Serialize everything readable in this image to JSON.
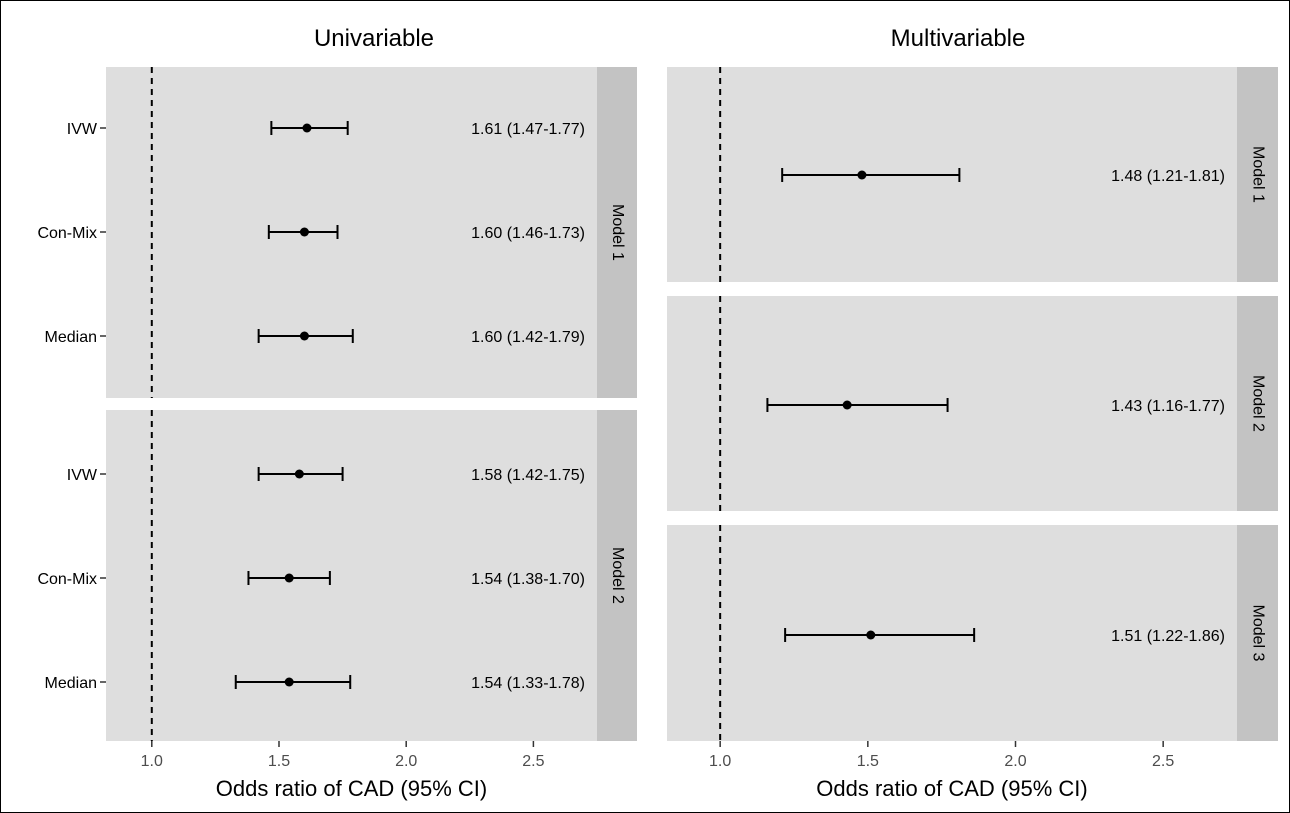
{
  "chart_data": [
    {
      "type": "forest",
      "title": "Univariable",
      "xlabel": "Odds ratio of CAD (95% CI)",
      "xticks": [
        "1.0",
        "1.5",
        "2.0",
        "2.5"
      ],
      "xlim": [
        0.82,
        2.75
      ],
      "reference_line": 1.0,
      "facets": [
        {
          "strip": "Model 1",
          "rows": [
            {
              "label": "IVW",
              "or": 1.61,
              "lo": 1.47,
              "hi": 1.77,
              "text": "1.61 (1.47-1.77)"
            },
            {
              "label": "Con-Mix",
              "or": 1.6,
              "lo": 1.46,
              "hi": 1.73,
              "text": "1.60 (1.46-1.73)"
            },
            {
              "label": "Median",
              "or": 1.6,
              "lo": 1.42,
              "hi": 1.79,
              "text": "1.60 (1.42-1.79)"
            }
          ]
        },
        {
          "strip": "Model 2",
          "rows": [
            {
              "label": "IVW",
              "or": 1.58,
              "lo": 1.42,
              "hi": 1.75,
              "text": "1.58 (1.42-1.75)"
            },
            {
              "label": "Con-Mix",
              "or": 1.54,
              "lo": 1.38,
              "hi": 1.7,
              "text": "1.54 (1.38-1.70)"
            },
            {
              "label": "Median",
              "or": 1.54,
              "lo": 1.33,
              "hi": 1.78,
              "text": "1.54 (1.33-1.78)"
            }
          ]
        }
      ]
    },
    {
      "type": "forest",
      "title": "Multivariable",
      "xlabel": "Odds ratio of CAD (95% CI)",
      "xticks": [
        "1.0",
        "1.5",
        "2.0",
        "2.5"
      ],
      "xlim": [
        0.82,
        2.75
      ],
      "reference_line": 1.0,
      "facets": [
        {
          "strip": "Model 1",
          "rows": [
            {
              "label": "",
              "or": 1.48,
              "lo": 1.21,
              "hi": 1.81,
              "text": "1.48 (1.21-1.81)"
            }
          ]
        },
        {
          "strip": "Model 2",
          "rows": [
            {
              "label": "",
              "or": 1.43,
              "lo": 1.16,
              "hi": 1.77,
              "text": "1.43 (1.16-1.77)"
            }
          ]
        },
        {
          "strip": "Model 3",
          "rows": [
            {
              "label": "",
              "or": 1.51,
              "lo": 1.22,
              "hi": 1.86,
              "text": "1.51 (1.22-1.86)"
            }
          ]
        }
      ]
    }
  ],
  "colors": {
    "panel_bg": "#dedede",
    "strip_bg": "#c3c3c3",
    "ink": "#000000"
  }
}
